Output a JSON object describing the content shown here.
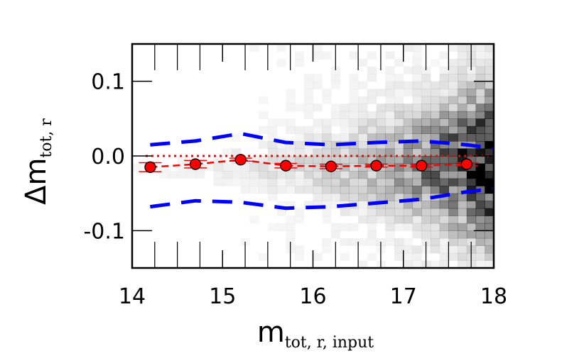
{
  "chart_data": {
    "type": "scatter",
    "title": "",
    "xlabel": {
      "main": "m",
      "subscript": "tot, r, input"
    },
    "ylabel": {
      "main": "Δm",
      "subscript": "tot, r"
    },
    "xlim": [
      14,
      18
    ],
    "ylim": [
      -0.15,
      0.15
    ],
    "x_ticks": [
      14,
      15,
      16,
      17,
      18
    ],
    "x_tick_labels": [
      "14",
      "15",
      "16",
      "17",
      "18"
    ],
    "y_ticks": [
      0.1,
      0.0,
      -0.1
    ],
    "y_tick_labels": [
      "0.1",
      "0.0",
      "-0.1"
    ],
    "grid": false,
    "legend": "none",
    "colors": {
      "points": "#ff0000",
      "errorbars": "#ff0000",
      "envelope": "#0000ff",
      "reference": "#ff0000",
      "density": "#000000"
    },
    "reference_line": {
      "y": 0.0,
      "style": "dotted"
    },
    "series": [
      {
        "kind": "binned-median",
        "x": [
          14.2,
          14.7,
          15.2,
          15.7,
          16.2,
          16.7,
          17.2,
          17.7
        ],
        "y": [
          -0.015,
          -0.011,
          -0.005,
          -0.013,
          -0.014,
          -0.013,
          -0.013,
          -0.011
        ],
        "yerr": [
          0.006,
          0.005,
          0.002,
          0.003,
          0.003,
          0.002,
          0.002,
          0.002
        ]
      },
      {
        "kind": "upper-envelope",
        "style": "dashed",
        "x": [
          14.2,
          14.7,
          15.2,
          15.7,
          16.2,
          16.7,
          17.2,
          17.7,
          18.0
        ],
        "y": [
          0.015,
          0.02,
          0.03,
          0.018,
          0.015,
          0.018,
          0.02,
          0.015,
          0.01
        ]
      },
      {
        "kind": "lower-envelope",
        "style": "dashed",
        "x": [
          14.2,
          14.7,
          15.2,
          15.7,
          16.2,
          16.7,
          17.2,
          17.7,
          18.0
        ],
        "y": [
          -0.068,
          -0.06,
          -0.062,
          -0.07,
          -0.068,
          -0.063,
          -0.058,
          -0.048,
          -0.044
        ]
      }
    ]
  }
}
